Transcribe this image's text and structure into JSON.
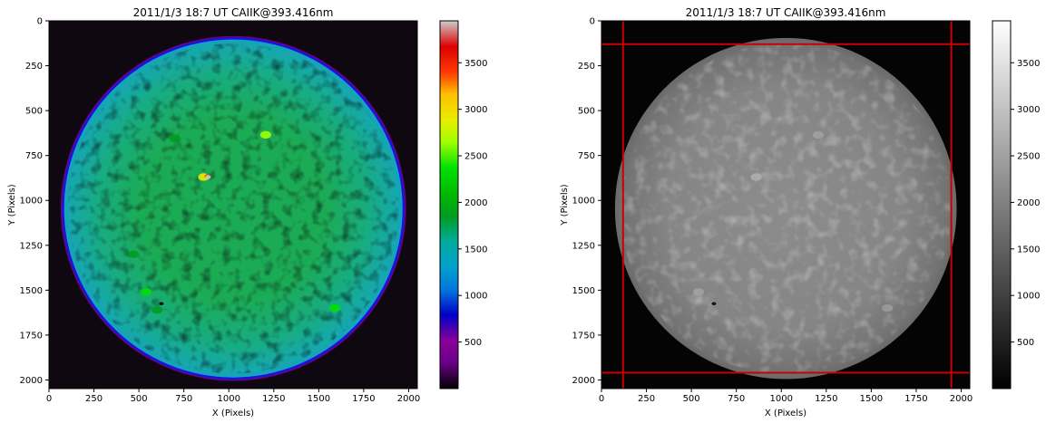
{
  "chart_data": [
    {
      "type": "heatmap",
      "colormap": "nipy_spectral",
      "title": "2011/1/3 18:7 UT CAIIK@393.416nm",
      "xlabel": "X (Pixels)",
      "ylabel": "Y (Pixels)",
      "xlim": [
        0,
        2048
      ],
      "ylim": [
        2048,
        0
      ],
      "xticks": [
        "0",
        "250",
        "500",
        "750",
        "1000",
        "1250",
        "1500",
        "1750",
        "2000"
      ],
      "yticks": [
        "0",
        "250",
        "500",
        "750",
        "1000",
        "1250",
        "1500",
        "1750",
        "2000"
      ],
      "colorbar_range": [
        0,
        3950
      ],
      "colorbar_ticks": [
        "500",
        "1000",
        "1500",
        "2000",
        "2500",
        "3000",
        "3500"
      ],
      "disk": {
        "center_x": 1025,
        "center_y": 1045,
        "radius": 950,
        "value": 1500
      },
      "active_regions": [
        {
          "x": 860,
          "y": 870,
          "value": 3000
        },
        {
          "x": 880,
          "y": 865,
          "value": 3500
        },
        {
          "x": 885,
          "y": 870,
          "value": 4000
        },
        {
          "x": 700,
          "y": 655,
          "value": 2300
        },
        {
          "x": 1205,
          "y": 635,
          "value": 2700
        },
        {
          "x": 540,
          "y": 1510,
          "value": 2500
        },
        {
          "x": 625,
          "y": 1575,
          "value": 200
        },
        {
          "x": 600,
          "y": 1610,
          "value": 2300
        },
        {
          "x": 1590,
          "y": 1600,
          "value": 2400
        },
        {
          "x": 470,
          "y": 1300,
          "value": 2100
        }
      ]
    },
    {
      "type": "heatmap",
      "colormap": "gray",
      "title": "2011/1/3 18:7 UT CAIIK@393.416nm",
      "xlabel": "X (Pixels)",
      "ylabel": "Y (Pixels)",
      "xlim": [
        0,
        2048
      ],
      "ylim": [
        2048,
        0
      ],
      "xticks": [
        "0",
        "250",
        "500",
        "750",
        "1000",
        "1250",
        "1500",
        "1750",
        "2000"
      ],
      "yticks": [
        "0",
        "250",
        "500",
        "750",
        "1000",
        "1250",
        "1500",
        "1750",
        "2000"
      ],
      "colorbar_range": [
        0,
        3950
      ],
      "colorbar_ticks": [
        "500",
        "1000",
        "1500",
        "2000",
        "2500",
        "3000",
        "3500"
      ],
      "disk": {
        "center_x": 1025,
        "center_y": 1045,
        "radius": 950,
        "value": 1500
      },
      "reference_lines": {
        "x": [
          120,
          1945
        ],
        "y": [
          130,
          1960
        ],
        "color": "#cc0000"
      },
      "active_regions": [
        {
          "x": 860,
          "y": 870,
          "value": 2700
        },
        {
          "x": 700,
          "y": 655,
          "value": 2300
        },
        {
          "x": 1205,
          "y": 635,
          "value": 2500
        },
        {
          "x": 540,
          "y": 1510,
          "value": 2500
        },
        {
          "x": 625,
          "y": 1575,
          "value": 80
        },
        {
          "x": 1590,
          "y": 1600,
          "value": 2400
        }
      ]
    }
  ]
}
